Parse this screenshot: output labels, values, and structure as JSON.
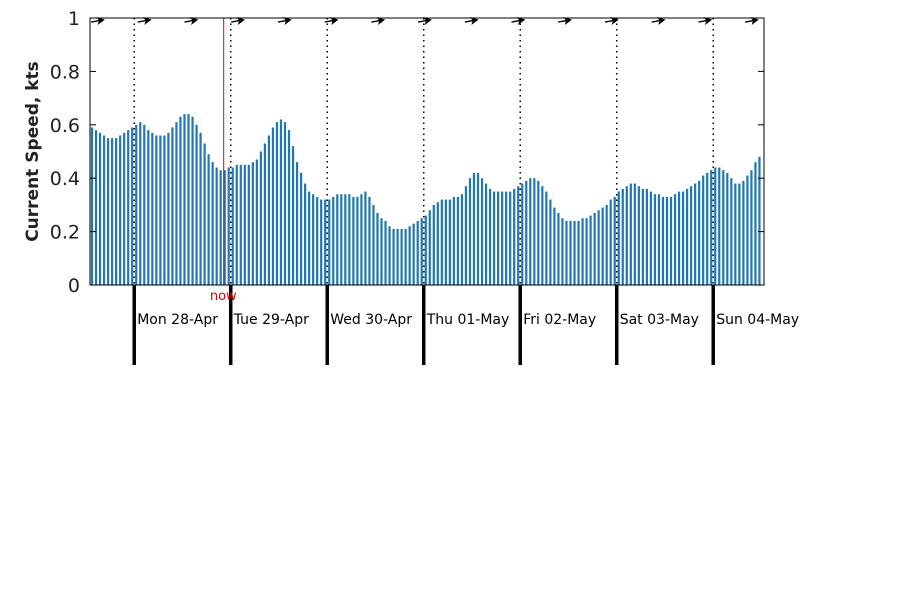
{
  "chart_data": {
    "type": "bar",
    "ylabel": "Current Speed, kts",
    "ylim": [
      0,
      1
    ],
    "yticks": [
      0,
      0.2,
      0.4,
      0.6,
      0.8,
      1
    ],
    "ytick_labels": [
      "0",
      "0.2",
      "0.4",
      "0.6",
      "0.8",
      "1"
    ],
    "days": [
      "Mon 28-Apr",
      "Tue 29-Apr",
      "Wed 30-Apr",
      "Thu 01-May",
      "Fri 02-May",
      "Sat 03-May",
      "Sun 04-May"
    ],
    "hours_before_first_day": 11,
    "bar_interval_hours": 1,
    "now_label": "now",
    "now_hour_offset": 22,
    "grid": false,
    "colors": {
      "bars": "#1f77b4",
      "now_line": "#dd0000",
      "axis": "#000000"
    },
    "arrow_direction_deg": 10,
    "series": [
      {
        "values": [
          0.59,
          0.58,
          0.57,
          0.56,
          0.55,
          0.55,
          0.55,
          0.56,
          0.57,
          0.58,
          0.59,
          0.6,
          0.61,
          0.6,
          0.58,
          0.57,
          0.56,
          0.56,
          0.56,
          0.57,
          0.59,
          0.61,
          0.63,
          0.64,
          0.64,
          0.63,
          0.6,
          0.57,
          0.53,
          0.49,
          0.46,
          0.44,
          0.43,
          0.43,
          0.44,
          0.44,
          0.45,
          0.45,
          0.45,
          0.45,
          0.46,
          0.47,
          0.5,
          0.53,
          0.56,
          0.59,
          0.61,
          0.62,
          0.61,
          0.58,
          0.52,
          0.46,
          0.42,
          0.38,
          0.35,
          0.34,
          0.33,
          0.32,
          0.32,
          0.32,
          0.33,
          0.34,
          0.34,
          0.34,
          0.34,
          0.33,
          0.33,
          0.34,
          0.35,
          0.33,
          0.3,
          0.27,
          0.25,
          0.24,
          0.22,
          0.21,
          0.21,
          0.21,
          0.21,
          0.22,
          0.23,
          0.24,
          0.25,
          0.26,
          0.28,
          0.3,
          0.31,
          0.32,
          0.32,
          0.32,
          0.33,
          0.33,
          0.34,
          0.37,
          0.4,
          0.42,
          0.42,
          0.4,
          0.38,
          0.36,
          0.35,
          0.35,
          0.35,
          0.35,
          0.35,
          0.36,
          0.37,
          0.38,
          0.39,
          0.4,
          0.4,
          0.39,
          0.37,
          0.35,
          0.32,
          0.29,
          0.27,
          0.25,
          0.24,
          0.24,
          0.24,
          0.24,
          0.25,
          0.25,
          0.26,
          0.27,
          0.28,
          0.29,
          0.3,
          0.32,
          0.33,
          0.35,
          0.36,
          0.37,
          0.38,
          0.38,
          0.37,
          0.36,
          0.36,
          0.35,
          0.34,
          0.34,
          0.33,
          0.33,
          0.33,
          0.34,
          0.35,
          0.35,
          0.36,
          0.37,
          0.38,
          0.39,
          0.41,
          0.42,
          0.43,
          0.44,
          0.44,
          0.43,
          0.42,
          0.4,
          0.38,
          0.38,
          0.39,
          0.41,
          0.43,
          0.46,
          0.48,
          0.5,
          0.52,
          0.53,
          0.52
        ]
      }
    ]
  }
}
